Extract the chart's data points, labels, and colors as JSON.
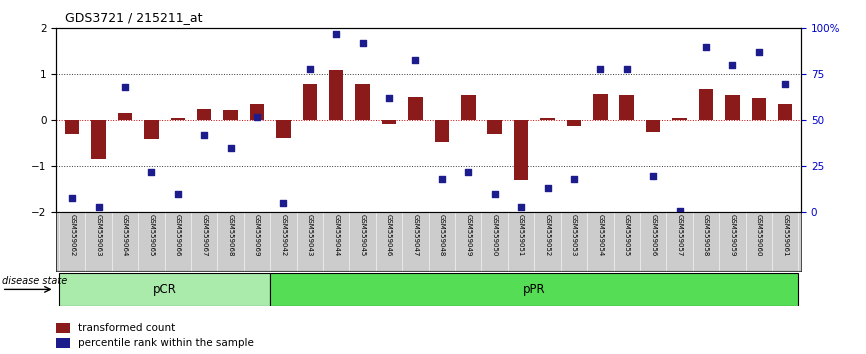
{
  "title": "GDS3721 / 215211_at",
  "samples": [
    "GSM559062",
    "GSM559063",
    "GSM559064",
    "GSM559065",
    "GSM559066",
    "GSM559067",
    "GSM559068",
    "GSM559069",
    "GSM559042",
    "GSM559043",
    "GSM559044",
    "GSM559045",
    "GSM559046",
    "GSM559047",
    "GSM559048",
    "GSM559049",
    "GSM559050",
    "GSM559051",
    "GSM559052",
    "GSM559053",
    "GSM559054",
    "GSM559055",
    "GSM559056",
    "GSM559057",
    "GSM559058",
    "GSM559059",
    "GSM559060",
    "GSM559061"
  ],
  "bar_values": [
    -0.3,
    -0.85,
    0.15,
    -0.4,
    0.05,
    0.25,
    0.22,
    0.35,
    -0.38,
    0.8,
    1.1,
    0.8,
    -0.08,
    0.5,
    -0.48,
    0.55,
    -0.3,
    -1.3,
    0.05,
    -0.12,
    0.58,
    0.55,
    -0.25,
    0.05,
    0.68,
    0.55,
    0.48,
    0.35
  ],
  "percentile_values": [
    8,
    3,
    68,
    22,
    10,
    42,
    35,
    52,
    5,
    78,
    97,
    92,
    62,
    83,
    18,
    22,
    10,
    3,
    13,
    18,
    78,
    78,
    20,
    1,
    90,
    80,
    87,
    70
  ],
  "pCR_count": 8,
  "pPR_count": 20,
  "ylim": [
    -2,
    2
  ],
  "y2lim": [
    0,
    100
  ],
  "bar_color": "#8B1A1A",
  "dot_color": "#1C1C8C",
  "pCR_color": "#AAEAAA",
  "pPR_color": "#55DD55",
  "bg_color": "#FFFFFF",
  "label_color": "#0000CC",
  "dotted_line_color": "#333333",
  "zero_line_color": "#CC0000",
  "legend_dot": "percentile rank within the sample",
  "legend_bar": "transformed count",
  "disease_state_label": "disease state"
}
